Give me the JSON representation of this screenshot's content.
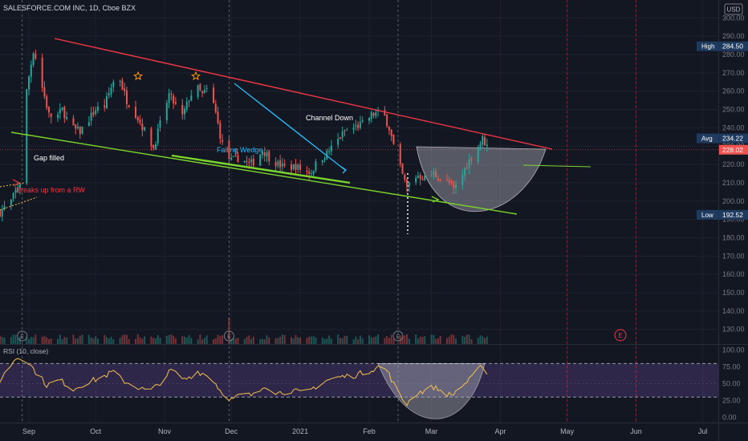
{
  "chart_data": {
    "type": "candlestick",
    "title": "SALESFORCE.COM INC, 1D, Cboe BZX",
    "currency": "USD",
    "price_axis": {
      "ylim": [
        122,
        308
      ],
      "ticks": [
        130,
        140,
        150,
        160,
        170,
        180,
        190,
        200,
        210,
        220,
        230,
        240,
        250,
        260,
        270,
        280,
        290,
        300
      ],
      "tick_labels": [
        "130.00",
        "140.00",
        "150.00",
        "160.00",
        "170.00",
        "180.00",
        "190.00",
        "200.00",
        "210.00",
        "220.00",
        "230.00",
        "240.00",
        "250.00",
        "260.00",
        "270.00",
        "280.00",
        "290.00",
        "300.00"
      ]
    },
    "x_axis": {
      "ticks": [
        {
          "day": 8,
          "label": "Sep"
        },
        {
          "day": 38,
          "label": "Oct"
        },
        {
          "day": 69,
          "label": "Nov"
        },
        {
          "day": 99,
          "label": "Dec"
        },
        {
          "day": 130,
          "label": "2021"
        },
        {
          "day": 161,
          "label": "Feb"
        },
        {
          "day": 189,
          "label": "Mar"
        },
        {
          "day": 220,
          "label": "Apr"
        },
        {
          "day": 250,
          "label": "May"
        },
        {
          "day": 281,
          "label": "Jun"
        },
        {
          "day": 311,
          "label": "Jul"
        }
      ],
      "xlim": [
        -5,
        318
      ]
    },
    "price_labels": {
      "high": {
        "label": "High",
        "value": "284.50"
      },
      "avg": {
        "label": "Avg",
        "value": "234.22"
      },
      "last": {
        "value": "228.02"
      },
      "low": {
        "label": "Low",
        "value": "192.52"
      }
    },
    "price_keypoints": [
      {
        "d": -5,
        "c": 194
      },
      {
        "d": 0,
        "c": 200
      },
      {
        "d": 4,
        "c": 210
      },
      {
        "d": 5,
        "c": 264
      },
      {
        "d": 6,
        "c": 252
      },
      {
        "d": 8,
        "c": 268
      },
      {
        "d": 10,
        "c": 282
      },
      {
        "d": 12,
        "c": 275
      },
      {
        "d": 14,
        "c": 262
      },
      {
        "d": 17,
        "c": 247
      },
      {
        "d": 20,
        "c": 245
      },
      {
        "d": 23,
        "c": 250
      },
      {
        "d": 27,
        "c": 240
      },
      {
        "d": 31,
        "c": 238
      },
      {
        "d": 34,
        "c": 243
      },
      {
        "d": 38,
        "c": 250
      },
      {
        "d": 42,
        "c": 252
      },
      {
        "d": 45,
        "c": 262
      },
      {
        "d": 48,
        "c": 271
      },
      {
        "d": 50,
        "c": 262
      },
      {
        "d": 52,
        "c": 255
      },
      {
        "d": 55,
        "c": 250
      },
      {
        "d": 58,
        "c": 243
      },
      {
        "d": 61,
        "c": 236
      },
      {
        "d": 64,
        "c": 229
      },
      {
        "d": 67,
        "c": 242
      },
      {
        "d": 71,
        "c": 258
      },
      {
        "d": 74,
        "c": 252
      },
      {
        "d": 77,
        "c": 246
      },
      {
        "d": 80,
        "c": 256
      },
      {
        "d": 83,
        "c": 263
      },
      {
        "d": 86,
        "c": 258
      },
      {
        "d": 89,
        "c": 262
      },
      {
        "d": 92,
        "c": 248
      },
      {
        "d": 94,
        "c": 236
      },
      {
        "d": 96,
        "c": 226
      },
      {
        "d": 99,
        "c": 222
      },
      {
        "d": 103,
        "c": 224
      },
      {
        "d": 107,
        "c": 220
      },
      {
        "d": 110,
        "c": 222
      },
      {
        "d": 113,
        "c": 228
      },
      {
        "d": 116,
        "c": 224
      },
      {
        "d": 120,
        "c": 220
      },
      {
        "d": 124,
        "c": 218
      },
      {
        "d": 128,
        "c": 219
      },
      {
        "d": 132,
        "c": 216
      },
      {
        "d": 135,
        "c": 216
      },
      {
        "d": 138,
        "c": 222
      },
      {
        "d": 142,
        "c": 226
      },
      {
        "d": 146,
        "c": 232
      },
      {
        "d": 150,
        "c": 238
      },
      {
        "d": 154,
        "c": 240
      },
      {
        "d": 158,
        "c": 242
      },
      {
        "d": 162,
        "c": 247
      },
      {
        "d": 165,
        "c": 248
      },
      {
        "d": 168,
        "c": 246
      },
      {
        "d": 170,
        "c": 240
      },
      {
        "d": 172,
        "c": 230
      },
      {
        "d": 174,
        "c": 222
      },
      {
        "d": 176,
        "c": 214
      },
      {
        "d": 178,
        "c": 207
      },
      {
        "d": 180,
        "c": 212
      },
      {
        "d": 183,
        "c": 214
      },
      {
        "d": 187,
        "c": 212
      },
      {
        "d": 190,
        "c": 215
      },
      {
        "d": 194,
        "c": 211
      },
      {
        "d": 197,
        "c": 210
      },
      {
        "d": 199,
        "c": 206
      },
      {
        "d": 202,
        "c": 212
      },
      {
        "d": 205,
        "c": 220
      },
      {
        "d": 208,
        "c": 226
      },
      {
        "d": 210,
        "c": 230
      },
      {
        "d": 212,
        "c": 234
      },
      {
        "d": 214,
        "c": 230
      }
    ],
    "volume_spikes": [
      {
        "d": 5,
        "v": 1.0
      },
      {
        "d": 6,
        "v": 0.5
      },
      {
        "d": 96,
        "v": 0.45
      },
      {
        "d": 97,
        "v": 0.86
      },
      {
        "d": 98,
        "v": 0.3
      },
      {
        "d": 173,
        "v": 0.3
      },
      {
        "d": 174,
        "v": 0.22
      }
    ],
    "rsi": {
      "label": "RSI (10, close)",
      "ylim": [
        -8,
        108
      ],
      "ticks": [
        0,
        25,
        50,
        75,
        100
      ],
      "tick_labels": [
        "0.00",
        "25.00",
        "50.00",
        "75.00",
        "100.00"
      ],
      "bands": [
        30,
        80
      ],
      "keypoints": [
        {
          "d": -5,
          "r": 55
        },
        {
          "d": 2,
          "r": 88
        },
        {
          "d": 6,
          "r": 90
        },
        {
          "d": 10,
          "r": 72
        },
        {
          "d": 16,
          "r": 48
        },
        {
          "d": 22,
          "r": 55
        },
        {
          "d": 28,
          "r": 42
        },
        {
          "d": 34,
          "r": 52
        },
        {
          "d": 40,
          "r": 58
        },
        {
          "d": 46,
          "r": 68
        },
        {
          "d": 50,
          "r": 55
        },
        {
          "d": 56,
          "r": 46
        },
        {
          "d": 62,
          "r": 38
        },
        {
          "d": 66,
          "r": 48
        },
        {
          "d": 72,
          "r": 70
        },
        {
          "d": 78,
          "r": 56
        },
        {
          "d": 84,
          "r": 68
        },
        {
          "d": 90,
          "r": 60
        },
        {
          "d": 94,
          "r": 40
        },
        {
          "d": 99,
          "r": 26
        },
        {
          "d": 104,
          "r": 34
        },
        {
          "d": 110,
          "r": 32
        },
        {
          "d": 114,
          "r": 48
        },
        {
          "d": 120,
          "r": 36
        },
        {
          "d": 126,
          "r": 40
        },
        {
          "d": 132,
          "r": 35
        },
        {
          "d": 136,
          "r": 44
        },
        {
          "d": 142,
          "r": 55
        },
        {
          "d": 148,
          "r": 60
        },
        {
          "d": 154,
          "r": 62
        },
        {
          "d": 160,
          "r": 68
        },
        {
          "d": 165,
          "r": 75
        },
        {
          "d": 169,
          "r": 70
        },
        {
          "d": 172,
          "r": 50
        },
        {
          "d": 175,
          "r": 30
        },
        {
          "d": 178,
          "r": 20
        },
        {
          "d": 182,
          "r": 35
        },
        {
          "d": 186,
          "r": 40
        },
        {
          "d": 190,
          "r": 45
        },
        {
          "d": 194,
          "r": 38
        },
        {
          "d": 198,
          "r": 32
        },
        {
          "d": 202,
          "r": 45
        },
        {
          "d": 206,
          "r": 55
        },
        {
          "d": 210,
          "r": 70
        },
        {
          "d": 212,
          "r": 78
        },
        {
          "d": 214,
          "r": 64
        }
      ]
    },
    "annotations": {
      "channel_down": "Channel Down",
      "falling_wedge": "Falling Wedge",
      "gap_filled": "Gap filled",
      "breakout": "Breaks up from a RW",
      "earnings_marker": "E"
    },
    "colors": {
      "up": "#26a69a",
      "down": "#ef5350",
      "upper_channel": "#f23645",
      "lower_channel": "#7bd62b",
      "wedge": "#29b6f6",
      "rsi_line": "#f7c04a",
      "rsi_band": "#7e57c2",
      "cup_fill": "#b2b5be",
      "star": "#ff9800"
    }
  }
}
